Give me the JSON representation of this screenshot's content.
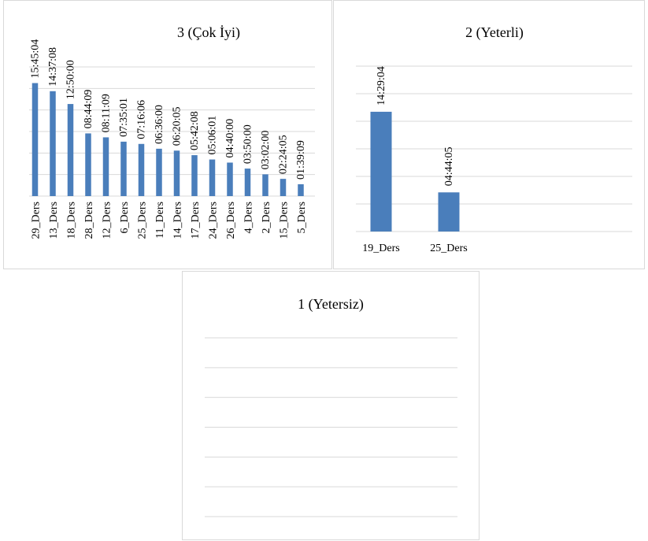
{
  "colors": {
    "bar": "#4a7ebb",
    "grid": "#d9d9d9",
    "text": "#000000"
  },
  "chart_data": [
    {
      "type": "bar",
      "title": "3 (Çok İyi)",
      "categories": [
        "29_Ders",
        "13_Ders",
        "18_Ders",
        "28_Ders",
        "12_Ders",
        "6_Ders",
        "25_Ders",
        "11_Ders",
        "14_Ders",
        "17_Ders",
        "24_Ders",
        "26_Ders",
        "4_Ders",
        "2_Ders",
        "15_Ders",
        "5_Ders"
      ],
      "value_labels": [
        "15:45:04",
        "14:37:08",
        "12:50:00",
        "08:44:09",
        "08:11:09",
        "07:35:01",
        "07:16:06",
        "06:36:00",
        "06:20:05",
        "05:42:08",
        "05:06:01",
        "04:40:00",
        "03:50:00",
        "03:02:00",
        "02:24:05",
        "01:39:09"
      ],
      "values_hours": [
        15.751,
        14.619,
        12.833,
        8.736,
        8.186,
        7.584,
        7.268,
        6.6,
        6.335,
        5.702,
        5.1,
        4.667,
        3.833,
        3.033,
        2.401,
        1.653
      ],
      "ylim": [
        0,
        18
      ],
      "grid": true,
      "gridlines": 7,
      "legend": "none"
    },
    {
      "type": "bar",
      "title": "2  (Yeterli)",
      "categories": [
        "19_Ders",
        "25_Ders"
      ],
      "value_labels": [
        "14:29:04",
        "04:44:05"
      ],
      "values_hours": [
        14.484,
        4.735
      ],
      "ylim": [
        0,
        20
      ],
      "grid": true,
      "gridlines": 7,
      "legend": "none"
    },
    {
      "type": "bar",
      "title": "1 (Yetersiz)",
      "categories": [],
      "value_labels": [],
      "values_hours": [],
      "grid": true,
      "gridlines": 7,
      "legend": "none"
    }
  ]
}
